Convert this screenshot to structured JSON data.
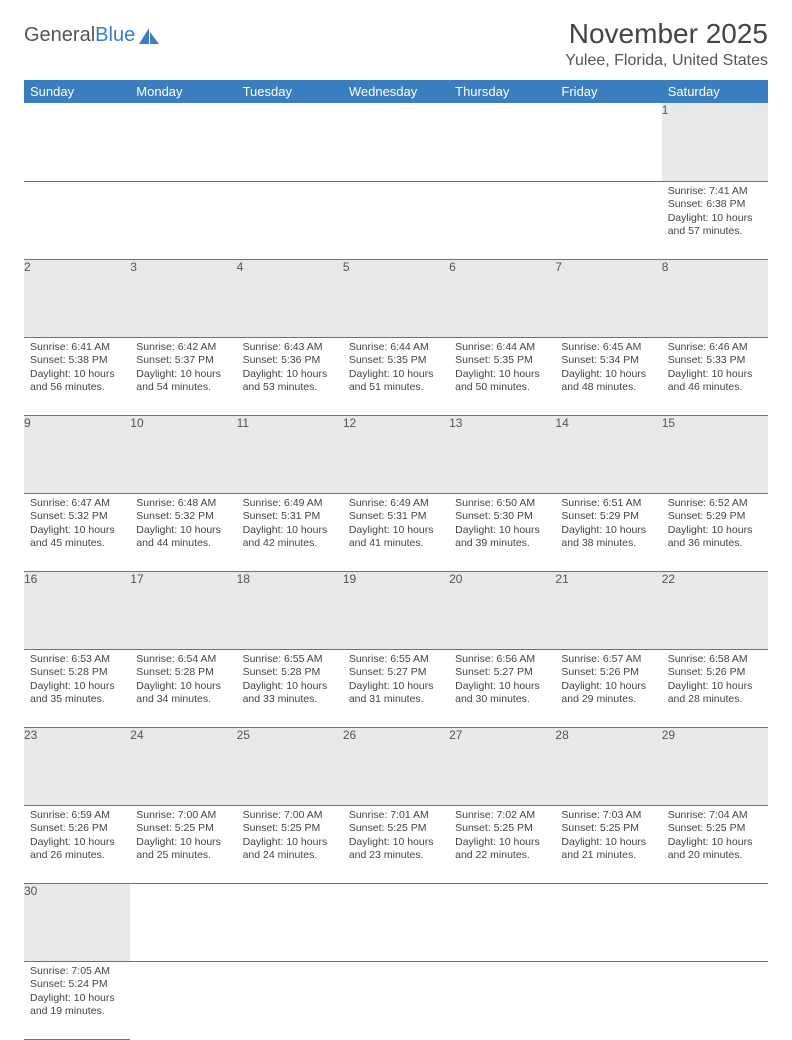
{
  "brand": {
    "part1": "General",
    "part2": "Blue"
  },
  "title": "November 2025",
  "location": "Yulee, Florida, United States",
  "colors": {
    "header_bg": "#3a7ebf",
    "header_fg": "#ffffff",
    "daynum_bg": "#e8e8e8",
    "rule": "#3a7ebf",
    "text": "#444444",
    "page_bg": "#ffffff"
  },
  "dayHeaders": [
    "Sunday",
    "Monday",
    "Tuesday",
    "Wednesday",
    "Thursday",
    "Friday",
    "Saturday"
  ],
  "weeks": [
    [
      null,
      null,
      null,
      null,
      null,
      null,
      {
        "n": "1",
        "sr": "7:41 AM",
        "ss": "6:38 PM",
        "dl": "10 hours and 57 minutes."
      }
    ],
    [
      {
        "n": "2",
        "sr": "6:41 AM",
        "ss": "5:38 PM",
        "dl": "10 hours and 56 minutes."
      },
      {
        "n": "3",
        "sr": "6:42 AM",
        "ss": "5:37 PM",
        "dl": "10 hours and 54 minutes."
      },
      {
        "n": "4",
        "sr": "6:43 AM",
        "ss": "5:36 PM",
        "dl": "10 hours and 53 minutes."
      },
      {
        "n": "5",
        "sr": "6:44 AM",
        "ss": "5:35 PM",
        "dl": "10 hours and 51 minutes."
      },
      {
        "n": "6",
        "sr": "6:44 AM",
        "ss": "5:35 PM",
        "dl": "10 hours and 50 minutes."
      },
      {
        "n": "7",
        "sr": "6:45 AM",
        "ss": "5:34 PM",
        "dl": "10 hours and 48 minutes."
      },
      {
        "n": "8",
        "sr": "6:46 AM",
        "ss": "5:33 PM",
        "dl": "10 hours and 46 minutes."
      }
    ],
    [
      {
        "n": "9",
        "sr": "6:47 AM",
        "ss": "5:32 PM",
        "dl": "10 hours and 45 minutes."
      },
      {
        "n": "10",
        "sr": "6:48 AM",
        "ss": "5:32 PM",
        "dl": "10 hours and 44 minutes."
      },
      {
        "n": "11",
        "sr": "6:49 AM",
        "ss": "5:31 PM",
        "dl": "10 hours and 42 minutes."
      },
      {
        "n": "12",
        "sr": "6:49 AM",
        "ss": "5:31 PM",
        "dl": "10 hours and 41 minutes."
      },
      {
        "n": "13",
        "sr": "6:50 AM",
        "ss": "5:30 PM",
        "dl": "10 hours and 39 minutes."
      },
      {
        "n": "14",
        "sr": "6:51 AM",
        "ss": "5:29 PM",
        "dl": "10 hours and 38 minutes."
      },
      {
        "n": "15",
        "sr": "6:52 AM",
        "ss": "5:29 PM",
        "dl": "10 hours and 36 minutes."
      }
    ],
    [
      {
        "n": "16",
        "sr": "6:53 AM",
        "ss": "5:28 PM",
        "dl": "10 hours and 35 minutes."
      },
      {
        "n": "17",
        "sr": "6:54 AM",
        "ss": "5:28 PM",
        "dl": "10 hours and 34 minutes."
      },
      {
        "n": "18",
        "sr": "6:55 AM",
        "ss": "5:28 PM",
        "dl": "10 hours and 33 minutes."
      },
      {
        "n": "19",
        "sr": "6:55 AM",
        "ss": "5:27 PM",
        "dl": "10 hours and 31 minutes."
      },
      {
        "n": "20",
        "sr": "6:56 AM",
        "ss": "5:27 PM",
        "dl": "10 hours and 30 minutes."
      },
      {
        "n": "21",
        "sr": "6:57 AM",
        "ss": "5:26 PM",
        "dl": "10 hours and 29 minutes."
      },
      {
        "n": "22",
        "sr": "6:58 AM",
        "ss": "5:26 PM",
        "dl": "10 hours and 28 minutes."
      }
    ],
    [
      {
        "n": "23",
        "sr": "6:59 AM",
        "ss": "5:26 PM",
        "dl": "10 hours and 26 minutes."
      },
      {
        "n": "24",
        "sr": "7:00 AM",
        "ss": "5:25 PM",
        "dl": "10 hours and 25 minutes."
      },
      {
        "n": "25",
        "sr": "7:00 AM",
        "ss": "5:25 PM",
        "dl": "10 hours and 24 minutes."
      },
      {
        "n": "26",
        "sr": "7:01 AM",
        "ss": "5:25 PM",
        "dl": "10 hours and 23 minutes."
      },
      {
        "n": "27",
        "sr": "7:02 AM",
        "ss": "5:25 PM",
        "dl": "10 hours and 22 minutes."
      },
      {
        "n": "28",
        "sr": "7:03 AM",
        "ss": "5:25 PM",
        "dl": "10 hours and 21 minutes."
      },
      {
        "n": "29",
        "sr": "7:04 AM",
        "ss": "5:25 PM",
        "dl": "10 hours and 20 minutes."
      }
    ],
    [
      {
        "n": "30",
        "sr": "7:05 AM",
        "ss": "5:24 PM",
        "dl": "10 hours and 19 minutes."
      },
      null,
      null,
      null,
      null,
      null,
      null
    ]
  ],
  "labels": {
    "sunrise": "Sunrise: ",
    "sunset": "Sunset: ",
    "daylight": "Daylight: "
  }
}
